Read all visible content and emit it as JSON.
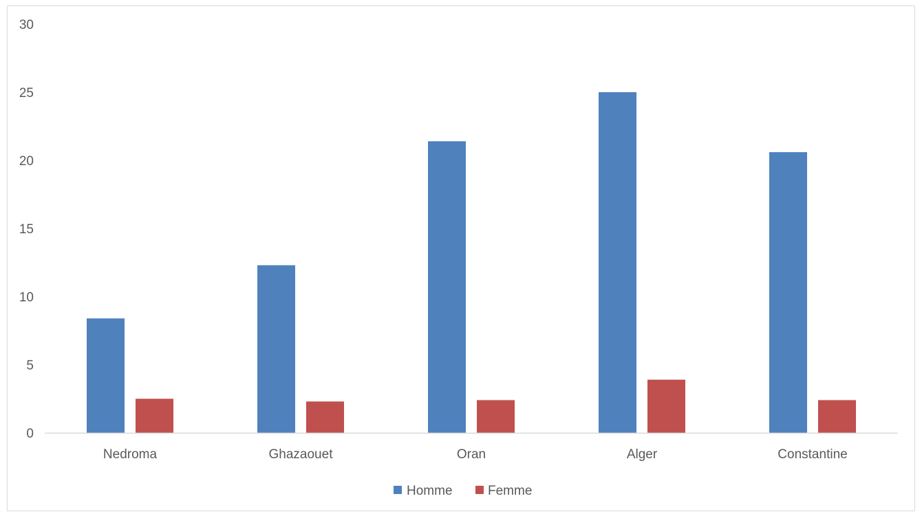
{
  "chart_data": {
    "type": "bar",
    "title": "",
    "xlabel": "",
    "ylabel": "",
    "categories": [
      "Nedroma",
      "Ghazaouet",
      "Oran",
      "Alger",
      "Constantine"
    ],
    "series": [
      {
        "name": "Homme",
        "color": "#4f81bd",
        "values": [
          8.4,
          12.3,
          21.4,
          25.0,
          20.6
        ]
      },
      {
        "name": "Femme",
        "color": "#c0504d",
        "values": [
          2.5,
          2.3,
          2.4,
          3.9,
          2.4
        ]
      }
    ],
    "ylim": [
      0,
      30
    ],
    "yticks": [
      "0",
      "5",
      "10",
      "15",
      "20",
      "25",
      "30"
    ],
    "grid": false,
    "legend_position": "bottom"
  }
}
